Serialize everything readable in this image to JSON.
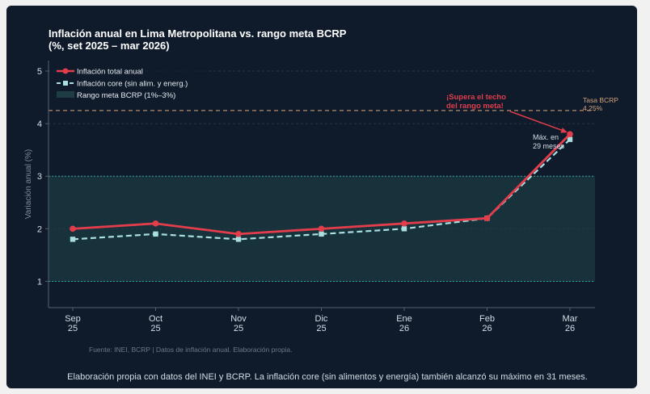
{
  "chart_data": {
    "type": "line",
    "title_line1": "Inflación anual en Lima Metropolitana vs. rango meta BCRP",
    "title_line2": "(%, set 2025 – mar 2026)",
    "ylabel": "Variación anual (%)",
    "ylim": [
      0.5,
      5.2
    ],
    "yticks": [
      1,
      2,
      3,
      4,
      5
    ],
    "categories": [
      {
        "month": "Sep",
        "year": "25"
      },
      {
        "month": "Oct",
        "year": "25"
      },
      {
        "month": "Nov",
        "year": "25"
      },
      {
        "month": "Dic",
        "year": "25"
      },
      {
        "month": "Ene",
        "year": "26"
      },
      {
        "month": "Feb",
        "year": "26"
      },
      {
        "month": "Mar",
        "year": "26"
      }
    ],
    "series": [
      {
        "name": "Inflación total anual",
        "values": [
          2.0,
          2.1,
          1.9,
          2.0,
          2.1,
          2.2,
          3.8
        ],
        "color": "#e23d4b",
        "marker": "circle",
        "dash": false
      },
      {
        "name": "Inflación core (sin alim. y energ.)",
        "values": [
          1.8,
          1.9,
          1.8,
          1.9,
          2.0,
          2.2,
          3.7
        ],
        "color": "#a9dfe0",
        "marker": "square",
        "dash": true
      }
    ],
    "band": {
      "label": "Rango meta BCRP (1%–3%)",
      "low": 1,
      "high": 3,
      "color": "#17323b",
      "edge_color": "#2aa39a"
    },
    "reference_line": {
      "value": 4.25,
      "label_line1": "Tasa BCRP",
      "label_line2": "4.25%",
      "color": "#d4a37b"
    },
    "annotation_alert": {
      "line1": "¡Supera el techo",
      "line2": "del rango meta!",
      "color": "#e23d4b",
      "target_index": 6
    },
    "annotation_max": {
      "line1": "Máx. en",
      "line2": "29 meses"
    },
    "source_note": "Fuente: INEI, BCRP  |  Datos de inflación anual. Elaboración propia.",
    "legend_position": "top-left"
  },
  "caption": "Elaboración propia con datos del INEI y BCRP. La inflación core (sin alimentos y energía) también alcanzó su máximo en 31 meses."
}
